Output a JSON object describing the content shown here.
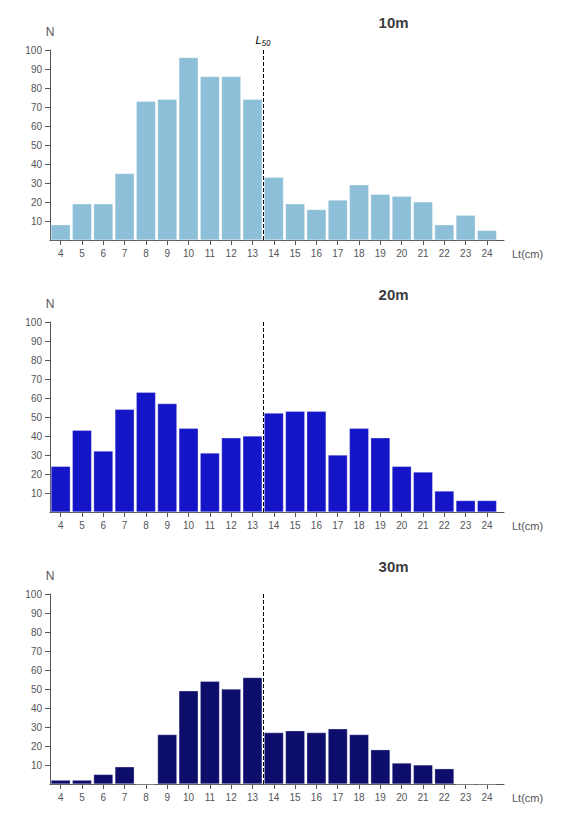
{
  "chart_data": [
    {
      "type": "bar",
      "title": "10m",
      "x": [
        4,
        5,
        6,
        7,
        8,
        9,
        10,
        11,
        12,
        13,
        14,
        15,
        16,
        17,
        18,
        19,
        20,
        21,
        22,
        23,
        24
      ],
      "values": [
        8,
        19,
        19,
        35,
        73,
        74,
        96,
        86,
        86,
        74,
        33,
        19,
        16,
        21,
        29,
        24,
        23,
        20,
        8,
        13,
        5
      ],
      "color": "#8dbfd8",
      "x_label": "Lt(cm)",
      "y_label": "N",
      "xlim": [
        3.5,
        24.8
      ],
      "xticks": [
        4,
        5,
        6,
        7,
        8,
        9,
        10,
        11,
        12,
        13,
        14,
        15,
        16,
        17,
        18,
        19,
        20,
        21,
        22,
        23,
        24
      ],
      "ylim": [
        0,
        100
      ],
      "yticks": [
        10,
        20,
        30,
        40,
        50,
        60,
        70,
        80,
        90,
        100
      ],
      "annotations": [
        {
          "x": 13.5,
          "text": "L₅₀",
          "line_style": "dashed"
        }
      ],
      "grid": false
    },
    {
      "type": "bar",
      "title": "20m",
      "x": [
        4,
        5,
        6,
        7,
        8,
        9,
        10,
        11,
        12,
        13,
        14,
        15,
        16,
        17,
        18,
        19,
        20,
        21,
        22,
        23,
        24
      ],
      "values": [
        24,
        43,
        32,
        54,
        63,
        57,
        44,
        31,
        39,
        40,
        52,
        53,
        53,
        30,
        44,
        39,
        24,
        21,
        11,
        6,
        6
      ],
      "color": "#1515c8",
      "x_label": "Lt(cm)",
      "y_label": "N",
      "xlim": [
        3.5,
        24.8
      ],
      "xticks": [
        4,
        5,
        6,
        7,
        8,
        9,
        10,
        11,
        12,
        13,
        14,
        15,
        16,
        17,
        18,
        19,
        20,
        21,
        22,
        23,
        24
      ],
      "ylim": [
        0,
        100
      ],
      "yticks": [
        10,
        20,
        30,
        40,
        50,
        60,
        70,
        80,
        90,
        100
      ],
      "annotations": [
        {
          "x": 13.5,
          "line_style": "dashed"
        }
      ],
      "grid": false
    },
    {
      "type": "bar",
      "title": "30m",
      "x": [
        4,
        5,
        6,
        7,
        8,
        9,
        10,
        11,
        12,
        13,
        14,
        15,
        16,
        17,
        18,
        19,
        20,
        21,
        22,
        23,
        24
      ],
      "values": [
        2,
        2,
        5,
        9,
        0,
        26,
        49,
        54,
        50,
        56,
        27,
        28,
        27,
        29,
        26,
        18,
        11,
        10,
        8,
        0,
        0
      ],
      "color": "#0d0d6b",
      "x_label": "Lt(cm)",
      "y_label": "N",
      "xlim": [
        3.5,
        24.8
      ],
      "xticks": [
        4,
        5,
        6,
        7,
        8,
        9,
        10,
        11,
        12,
        13,
        14,
        15,
        16,
        17,
        18,
        19,
        20,
        21,
        22,
        23,
        24
      ],
      "ylim": [
        0,
        100
      ],
      "yticks": [
        10,
        20,
        30,
        40,
        50,
        60,
        70,
        80,
        90,
        100
      ],
      "annotations": [
        {
          "x": 13.5,
          "line_style": "dashed"
        }
      ],
      "grid": false
    }
  ]
}
